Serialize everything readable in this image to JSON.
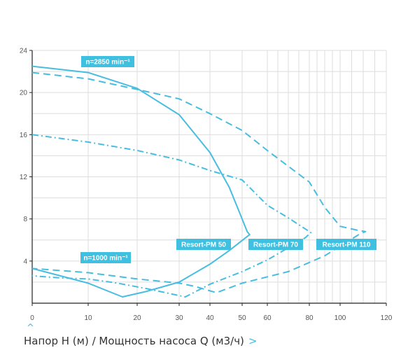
{
  "chart_data": {
    "type": "line",
    "xlim": [
      0,
      120
    ],
    "ylim": [
      0,
      24
    ],
    "x_ticks": [
      0,
      10,
      20,
      30,
      40,
      50,
      60,
      80,
      100,
      120
    ],
    "y_ticks": [
      4,
      8,
      12,
      16,
      20,
      24
    ],
    "grid": true,
    "colors": {
      "line": "#47bde0",
      "callout_bg": "#3fc0e0",
      "axis": "#222222",
      "grid": "#dddddd"
    },
    "speed_labels": [
      "n=2850 min⁻¹",
      "n=1000 min⁻¹"
    ],
    "series": [
      {
        "name": "Resort-PM 50",
        "style": "solid",
        "points": [
          [
            0,
            22.5
          ],
          [
            10,
            21.9
          ],
          [
            20,
            20.4
          ],
          [
            30,
            17.9
          ],
          [
            40,
            14.3
          ],
          [
            46,
            11
          ],
          [
            50,
            8
          ],
          [
            52,
            6.8
          ],
          [
            53,
            6.5
          ],
          [
            52.4,
            6.4
          ],
          [
            46,
            5
          ],
          [
            40,
            3.7
          ],
          [
            30,
            2
          ],
          [
            22,
            1.1
          ],
          [
            17,
            0.6
          ],
          [
            10,
            1.9
          ],
          [
            5,
            2.6
          ],
          [
            0,
            3.3
          ]
        ]
      },
      {
        "name": "Resort-PM 70",
        "style": "dash-dot",
        "points": [
          [
            0,
            16
          ],
          [
            10,
            15.3
          ],
          [
            20,
            14.5
          ],
          [
            30,
            13.6
          ],
          [
            40,
            12.6
          ],
          [
            50,
            11.7
          ],
          [
            60,
            9.3
          ],
          [
            70,
            8.1
          ],
          [
            80,
            6.8
          ],
          [
            81,
            6.7
          ],
          [
            78,
            6.2
          ],
          [
            60,
            4.1
          ],
          [
            50,
            3
          ],
          [
            40,
            1.8
          ],
          [
            32,
            0.6
          ],
          [
            22,
            1.4
          ],
          [
            16,
            1.9
          ],
          [
            10,
            2.3
          ],
          [
            5,
            2.4
          ],
          [
            0,
            2.6
          ]
        ]
      },
      {
        "name": "Resort-PM 110",
        "style": "dashed",
        "points": [
          [
            0,
            21.9
          ],
          [
            10,
            21.3
          ],
          [
            20,
            20.3
          ],
          [
            30,
            19.4
          ],
          [
            40,
            18
          ],
          [
            50,
            16.4
          ],
          [
            60,
            14.5
          ],
          [
            80,
            11.5
          ],
          [
            90,
            9.1
          ],
          [
            100,
            7.3
          ],
          [
            108,
            6.9
          ],
          [
            111,
            6.8
          ],
          [
            108,
            6.5
          ],
          [
            90,
            4.5
          ],
          [
            70,
            3
          ],
          [
            50,
            1.9
          ],
          [
            42,
            1
          ],
          [
            35,
            1.6
          ],
          [
            30,
            1.9
          ],
          [
            20,
            2.3
          ],
          [
            10,
            2.9
          ],
          [
            0,
            3.3
          ]
        ]
      }
    ],
    "labels": [
      "Resort-PM 50",
      "Resort-PM 70",
      "Resort-PM 110"
    ]
  },
  "footer": {
    "axis_caption": "Напор H (м) / Мощность насоса Q (м3/ч)",
    "next_icon": "chevron-right-icon",
    "up_icon": "chevron-up-icon"
  }
}
